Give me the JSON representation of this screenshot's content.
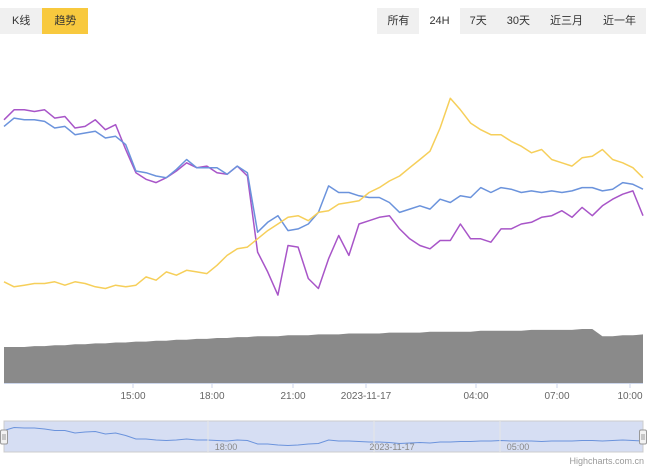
{
  "tabs": [
    "K线",
    "趋势"
  ],
  "active_tab": 1,
  "ranges": [
    "所有",
    "24H",
    "7天",
    "30天",
    "近三月",
    "近一年"
  ],
  "active_range": 1,
  "credits": "Highcharts.com.cn",
  "colors": {
    "purple": "#a855c8",
    "blue": "#6b93dc",
    "yellow": "#f6cf5a",
    "volume": "#8a8a8a",
    "navigator_fill": "#d6def3",
    "navigator_line": "#6b93dc",
    "active_tab": "#f8c93e"
  },
  "chart_data": {
    "type": "line",
    "x_ticks": [
      "15:00",
      "18:00",
      "21:00",
      "2023-11-17",
      "04:00",
      "07:00",
      "10:00"
    ],
    "y_axis_labels_visible": false,
    "series": [
      {
        "color": "purple",
        "values": [
          62,
          68,
          68,
          67,
          68,
          63,
          64,
          57,
          58,
          62,
          56,
          59,
          44,
          30,
          26,
          24,
          27,
          31,
          36,
          33,
          34,
          30,
          29,
          34,
          28,
          -18,
          -30,
          -44,
          -14,
          -15,
          -34,
          -40,
          -22,
          -8,
          -20,
          -1,
          1,
          3,
          4,
          -4,
          -10,
          -14,
          -16,
          -11,
          -11,
          -1,
          -10,
          -10,
          -12,
          -4,
          -4,
          -1,
          0,
          3,
          4,
          7,
          3,
          9,
          4,
          10,
          14,
          17,
          19,
          4
        ]
      },
      {
        "color": "blue",
        "values": [
          58,
          63,
          62,
          62,
          61,
          57,
          58,
          53,
          54,
          55,
          51,
          52,
          47,
          31,
          30,
          28,
          27,
          32,
          38,
          33,
          33,
          33,
          29,
          34,
          30,
          -6,
          0,
          4,
          -5,
          -4,
          -1,
          6,
          22,
          18,
          18,
          16,
          15,
          15,
          12,
          6,
          8,
          10,
          8,
          14,
          12,
          16,
          15,
          21,
          18,
          21,
          20,
          18,
          19,
          18,
          19,
          18,
          19,
          21,
          21,
          19,
          20,
          24,
          23,
          20
        ]
      },
      {
        "color": "yellow",
        "values": [
          -36,
          -39,
          -38,
          -37,
          -37,
          -36,
          -38,
          -36,
          -37,
          -39,
          -40,
          -38,
          -39,
          -38,
          -33,
          -35,
          -30,
          -32,
          -29,
          -30,
          -31,
          -26,
          -20,
          -16,
          -15,
          -10,
          -5,
          -1,
          3,
          4,
          1,
          6,
          7,
          11,
          12,
          13,
          18,
          21,
          25,
          28,
          33,
          38,
          43,
          57,
          75,
          68,
          60,
          56,
          53,
          53,
          49,
          46,
          42,
          44,
          38,
          36,
          34,
          39,
          40,
          44,
          38,
          36,
          33,
          27
        ]
      }
    ],
    "volume": {
      "color": "volume",
      "values": [
        40,
        40,
        40,
        41,
        41,
        42,
        42,
        43,
        43,
        44,
        44,
        45,
        45,
        46,
        46,
        47,
        47,
        48,
        48,
        49,
        49,
        50,
        50,
        51,
        51,
        52,
        52,
        52,
        53,
        53,
        53,
        54,
        54,
        54,
        55,
        55,
        55,
        55,
        56,
        56,
        56,
        56,
        57,
        57,
        57,
        57,
        57,
        58,
        58,
        58,
        58,
        58,
        59,
        59,
        59,
        59,
        59,
        60,
        60,
        52,
        52,
        53,
        53,
        54
      ]
    },
    "navigator": {
      "x_labels": [
        "18:00",
        "2023-11-17",
        "05:00"
      ],
      "values": [
        57,
        63,
        62,
        62,
        60,
        57,
        57,
        52,
        54,
        55,
        50,
        52,
        47,
        40,
        40,
        38,
        37,
        38,
        40,
        38,
        38,
        37,
        36,
        38,
        37,
        30,
        30,
        28,
        27,
        28,
        30,
        31,
        38,
        36,
        36,
        35,
        34,
        34,
        33,
        31,
        32,
        33,
        32,
        34,
        34,
        35,
        35,
        36,
        36,
        37,
        36,
        36,
        36,
        35,
        36,
        36,
        36,
        37,
        37,
        36,
        37,
        38,
        37,
        36
      ]
    }
  }
}
